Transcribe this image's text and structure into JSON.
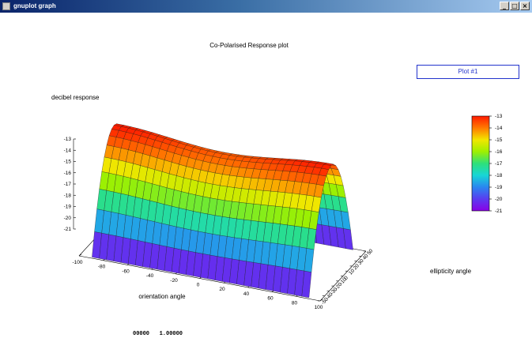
{
  "window": {
    "title": "gnuplot graph",
    "controls": [
      "_",
      "□",
      "×"
    ]
  },
  "legend_key": {
    "label": "Plot #1"
  },
  "status": {
    "text": "00000   1.00000"
  },
  "chart_data": {
    "type": "surface",
    "title": "Co-Polarised Response plot",
    "zlabel": "decibel response",
    "xlabel": "orientation angle",
    "ylabel": "ellipticity angle",
    "x_range": [
      -100,
      100
    ],
    "y_range": [
      -50,
      50
    ],
    "z_range": [
      -21,
      -13
    ],
    "x_ticks": [
      -100,
      -80,
      -60,
      -40,
      -20,
      0,
      20,
      40,
      60,
      80,
      100
    ],
    "y_ticks": [
      -50,
      -40,
      -30,
      -20,
      -10,
      0,
      10,
      20,
      30,
      40,
      50
    ],
    "z_ticks": [
      -13,
      -14,
      -15,
      -16,
      -17,
      -18,
      -19,
      -20,
      -21
    ],
    "colorbar_ticks": [
      -13,
      -14,
      -15,
      -16,
      -17,
      -18,
      -19,
      -20,
      -21
    ],
    "colorbar_colors": [
      "#ff1a00",
      "#ff7a00",
      "#f2e600",
      "#9ef000",
      "#2ee07a",
      "#18d6d6",
      "#2a86f0",
      "#5a3cf0",
      "#8a00e6"
    ],
    "surface_z_max": -13,
    "surface_z_min": -21,
    "legend_position": "top-right",
    "grid": false
  }
}
